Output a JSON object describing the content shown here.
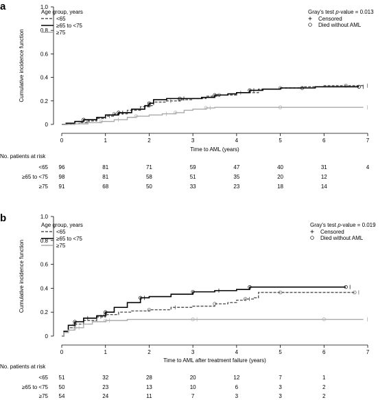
{
  "chart_data": [
    {
      "type": "line",
      "panel_label": "a",
      "xlabel": "Time to AML (years)",
      "ylabel": "Cumulative incidence function",
      "xlim": [
        0,
        7
      ],
      "ylim": [
        0,
        1.0
      ],
      "x_ticks": [
        "0",
        "1",
        "2",
        "3",
        "4",
        "5",
        "6",
        "7"
      ],
      "y_ticks": [
        "0",
        "0.2",
        "0.4",
        "0.6",
        "0.8",
        "1.0"
      ],
      "grid": false,
      "legend_title": "Age group, years",
      "legend_position": "top-left",
      "test_text": "Gray's test ",
      "test_p_label": "p",
      "test_value": "-value = 0.013",
      "marker_legend": [
        "Censored",
        "Died without AML"
      ],
      "series": [
        {
          "name": "<65",
          "style": "dashed",
          "color": "#555555",
          "x": [
            0,
            0.2,
            0.4,
            0.6,
            0.8,
            1.0,
            1.2,
            1.5,
            1.8,
            2.0,
            2.1,
            2.4,
            2.7,
            3.0,
            3.3,
            3.6,
            4.0,
            4.5,
            5.0,
            5.5,
            6.0,
            6.5,
            6.9
          ],
          "y": [
            0,
            0.005,
            0.015,
            0.03,
            0.05,
            0.07,
            0.09,
            0.12,
            0.15,
            0.16,
            0.19,
            0.2,
            0.21,
            0.22,
            0.24,
            0.25,
            0.27,
            0.3,
            0.31,
            0.32,
            0.33,
            0.33,
            0.33
          ]
        },
        {
          "name": "≥65 to <75",
          "style": "solid",
          "color": "#000000",
          "x": [
            0,
            0.1,
            0.3,
            0.5,
            0.8,
            1.0,
            1.3,
            1.6,
            1.9,
            2.0,
            2.1,
            2.4,
            2.7,
            3.0,
            3.2,
            3.5,
            3.8,
            4.0,
            4.3,
            4.6,
            5.0,
            5.5,
            5.8,
            6.0,
            6.8
          ],
          "y": [
            0,
            0.01,
            0.025,
            0.04,
            0.06,
            0.08,
            0.1,
            0.13,
            0.16,
            0.18,
            0.21,
            0.22,
            0.22,
            0.22,
            0.23,
            0.25,
            0.26,
            0.27,
            0.29,
            0.3,
            0.31,
            0.31,
            0.32,
            0.32,
            0.32
          ]
        },
        {
          "name": "≥75",
          "style": "solid",
          "color": "#aaaaaa",
          "x": [
            0,
            0.3,
            0.6,
            0.9,
            1.2,
            1.5,
            1.7,
            2.0,
            2.3,
            2.6,
            2.8,
            3.0,
            3.3,
            3.5,
            4.0,
            5.0,
            6.0,
            6.9
          ],
          "y": [
            0,
            0.005,
            0.015,
            0.025,
            0.04,
            0.06,
            0.07,
            0.08,
            0.09,
            0.1,
            0.12,
            0.13,
            0.14,
            0.145,
            0.145,
            0.145,
            0.145,
            0.145
          ]
        }
      ],
      "risk_table": {
        "title": "No. patients at risk",
        "rows": [
          {
            "label": "<65",
            "values": [
              "96",
              "81",
              "71",
              "59",
              "47",
              "40",
              "31",
              "4"
            ]
          },
          {
            "label": "≥65 to <75",
            "values": [
              "98",
              "81",
              "58",
              "51",
              "35",
              "20",
              "12",
              ""
            ]
          },
          {
            "label": "≥75",
            "values": [
              "91",
              "68",
              "50",
              "33",
              "23",
              "18",
              "14",
              ""
            ]
          }
        ]
      }
    },
    {
      "type": "line",
      "panel_label": "b",
      "xlabel": "Time to AML after treatment failure (years)",
      "ylabel": "Cumulative incidence function",
      "xlim": [
        0,
        7
      ],
      "ylim": [
        0,
        1.0
      ],
      "x_ticks": [
        "0",
        "1",
        "2",
        "3",
        "4",
        "5",
        "6",
        "7"
      ],
      "y_ticks": [
        "0",
        "0.2",
        "0.4",
        "0.6",
        "0.8",
        "1.0"
      ],
      "grid": false,
      "legend_title": "Age group, years",
      "legend_position": "top-left",
      "test_text": "Gray's test ",
      "test_p_label": "p",
      "test_value": "-value = 0.019",
      "marker_legend": [
        "Censored",
        "Died without AML"
      ],
      "series": [
        {
          "name": "<65",
          "style": "dashed",
          "color": "#555555",
          "x": [
            0,
            0.05,
            0.15,
            0.3,
            0.5,
            0.8,
            1.0,
            1.3,
            1.6,
            2.0,
            2.5,
            3.0,
            3.5,
            3.8,
            4.0,
            4.2,
            4.4,
            4.5,
            5.0,
            5.5,
            6.0,
            6.7
          ],
          "y": [
            0,
            0.03,
            0.07,
            0.1,
            0.13,
            0.16,
            0.18,
            0.2,
            0.21,
            0.22,
            0.24,
            0.25,
            0.27,
            0.28,
            0.3,
            0.31,
            0.32,
            0.365,
            0.365,
            0.365,
            0.365,
            0.365
          ]
        },
        {
          "name": "≥65 to <75",
          "style": "solid",
          "color": "#000000",
          "x": [
            0,
            0.05,
            0.15,
            0.3,
            0.5,
            0.8,
            1.0,
            1.2,
            1.5,
            1.8,
            2.0,
            2.5,
            3.0,
            3.5,
            4.0,
            4.3,
            5.0,
            6.0,
            6.5
          ],
          "y": [
            0,
            0.04,
            0.09,
            0.12,
            0.15,
            0.17,
            0.2,
            0.24,
            0.28,
            0.32,
            0.33,
            0.35,
            0.37,
            0.38,
            0.39,
            0.41,
            0.41,
            0.41,
            0.41
          ]
        },
        {
          "name": "≥75",
          "style": "solid",
          "color": "#aaaaaa",
          "x": [
            0,
            0.05,
            0.15,
            0.3,
            0.5,
            0.7,
            1.0,
            1.5,
            2.0,
            3.0,
            4.0,
            5.0,
            6.0,
            6.9
          ],
          "y": [
            0,
            0.03,
            0.05,
            0.07,
            0.1,
            0.12,
            0.13,
            0.14,
            0.14,
            0.14,
            0.14,
            0.14,
            0.14,
            0.14
          ]
        }
      ],
      "risk_table": {
        "title": "No. patients at risk",
        "rows": [
          {
            "label": "<65",
            "values": [
              "51",
              "32",
              "28",
              "20",
              "12",
              "7",
              "1",
              ""
            ]
          },
          {
            "label": "≥65 to <75",
            "values": [
              "50",
              "23",
              "13",
              "10",
              "6",
              "3",
              "2",
              ""
            ]
          },
          {
            "label": "≥75",
            "values": [
              "54",
              "24",
              "11",
              "7",
              "3",
              "3",
              "2",
              ""
            ]
          }
        ]
      }
    }
  ]
}
